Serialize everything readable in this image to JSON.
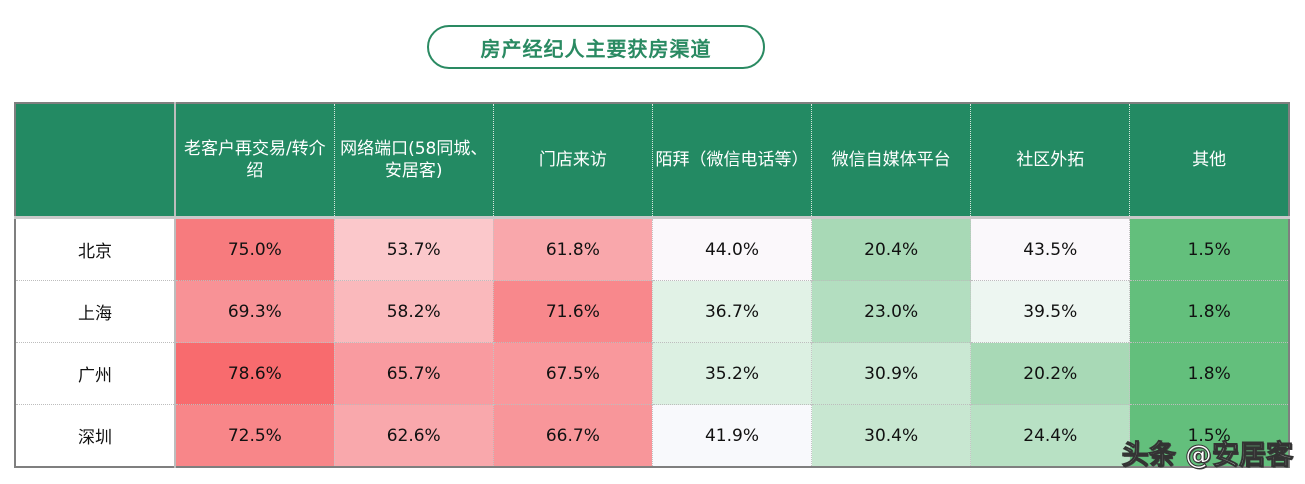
{
  "title": "房产经纪人主要获房渠道",
  "watermark": "头条 @安居客",
  "table": {
    "corner": "",
    "columns": [
      "老客户再交易/转介绍",
      "网络端口(58同城、安居客)",
      "门店来访",
      "陌拜（微信电话等）",
      "微信自媒体平台",
      "社区外拓",
      "其他"
    ],
    "rows": [
      {
        "city": "北京",
        "values": [
          "75.0%",
          "53.7%",
          "61.8%",
          "44.0%",
          "20.4%",
          "43.5%",
          "1.5%"
        ],
        "colors": [
          "#f77b7e",
          "#fbc8cb",
          "#f9a7ab",
          "#fbf8fb",
          "#a8d9b6",
          "#faf8fb",
          "#63bf7c"
        ]
      },
      {
        "city": "上海",
        "values": [
          "69.3%",
          "58.2%",
          "71.6%",
          "36.7%",
          "23.0%",
          "39.5%",
          "1.8%"
        ],
        "colors": [
          "#f89296",
          "#fab9bc",
          "#f8888c",
          "#e1f2e6",
          "#b3dec0",
          "#edf6f1",
          "#63bf7c"
        ]
      },
      {
        "city": "广州",
        "values": [
          "78.6%",
          "65.7%",
          "67.5%",
          "35.2%",
          "30.9%",
          "20.2%",
          "1.8%"
        ],
        "colors": [
          "#f86b6e",
          "#f99ba0",
          "#f9989c",
          "#dcf0e2",
          "#cae8d3",
          "#a8d9b6",
          "#63bf7c"
        ]
      },
      {
        "city": "深圳",
        "values": [
          "72.5%",
          "62.6%",
          "66.7%",
          "41.9%",
          "30.4%",
          "24.4%",
          "1.5%"
        ],
        "colors": [
          "#f88689",
          "#f9a8ac",
          "#f8969a",
          "#f8f9fc",
          "#c8e7d1",
          "#b8e1c4",
          "#63bf7c"
        ]
      }
    ]
  },
  "colors": {
    "header_bg": "#238a63",
    "title_green": "#2a8a62",
    "high_red": "#f86b6e",
    "low_green": "#63bf7c"
  },
  "chart_data": {
    "type": "heatmap",
    "title": "房产经纪人主要获房渠道",
    "categories": [
      "老客户再交易/转介绍",
      "网络端口(58同城、安居客)",
      "门店来访",
      "陌拜（微信电话等）",
      "微信自媒体平台",
      "社区外拓",
      "其他"
    ],
    "rows": [
      "北京",
      "上海",
      "广州",
      "深圳"
    ],
    "series": [
      {
        "name": "北京",
        "values": [
          75.0,
          53.7,
          61.8,
          44.0,
          20.4,
          43.5,
          1.5
        ]
      },
      {
        "name": "上海",
        "values": [
          69.3,
          58.2,
          71.6,
          36.7,
          23.0,
          39.5,
          1.8
        ]
      },
      {
        "name": "广州",
        "values": [
          78.6,
          65.7,
          67.5,
          35.2,
          30.9,
          20.2,
          1.8
        ]
      },
      {
        "name": "深圳",
        "values": [
          72.5,
          62.6,
          66.7,
          41.9,
          30.4,
          24.4,
          1.5
        ]
      }
    ],
    "unit": "%",
    "color_scale": "red (high) – white (mid) – green (low), per column"
  }
}
